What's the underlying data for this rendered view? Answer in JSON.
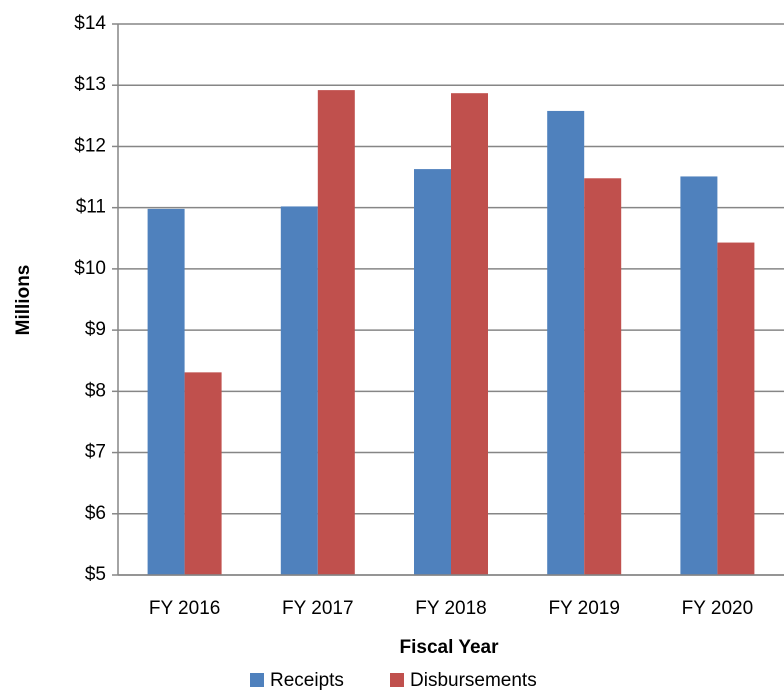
{
  "chart_data": {
    "type": "bar",
    "categories": [
      "FY 2016",
      "FY 2017",
      "FY 2018",
      "FY 2019",
      "FY 2020"
    ],
    "series": [
      {
        "name": "Receipts",
        "color": "#4f81bd",
        "values": [
          10.98,
          11.02,
          11.63,
          12.58,
          11.51
        ]
      },
      {
        "name": "Disbursements",
        "color": "#c0504d",
        "values": [
          8.31,
          12.92,
          12.87,
          11.48,
          10.43
        ]
      }
    ],
    "xlabel": "Fiscal Year",
    "ylabel": "Millions",
    "ylim": [
      5,
      14
    ],
    "yticks": [
      {
        "value": 5,
        "label": "$5"
      },
      {
        "value": 6,
        "label": "$6"
      },
      {
        "value": 7,
        "label": "$7"
      },
      {
        "value": 8,
        "label": "$8"
      },
      {
        "value": 9,
        "label": "$9"
      },
      {
        "value": 10,
        "label": "$10"
      },
      {
        "value": 11,
        "label": "$11"
      },
      {
        "value": 12,
        "label": "$12"
      },
      {
        "value": 13,
        "label": "$13"
      },
      {
        "value": 14,
        "label": "$14"
      }
    ],
    "grid": true,
    "legend": "bottom"
  }
}
